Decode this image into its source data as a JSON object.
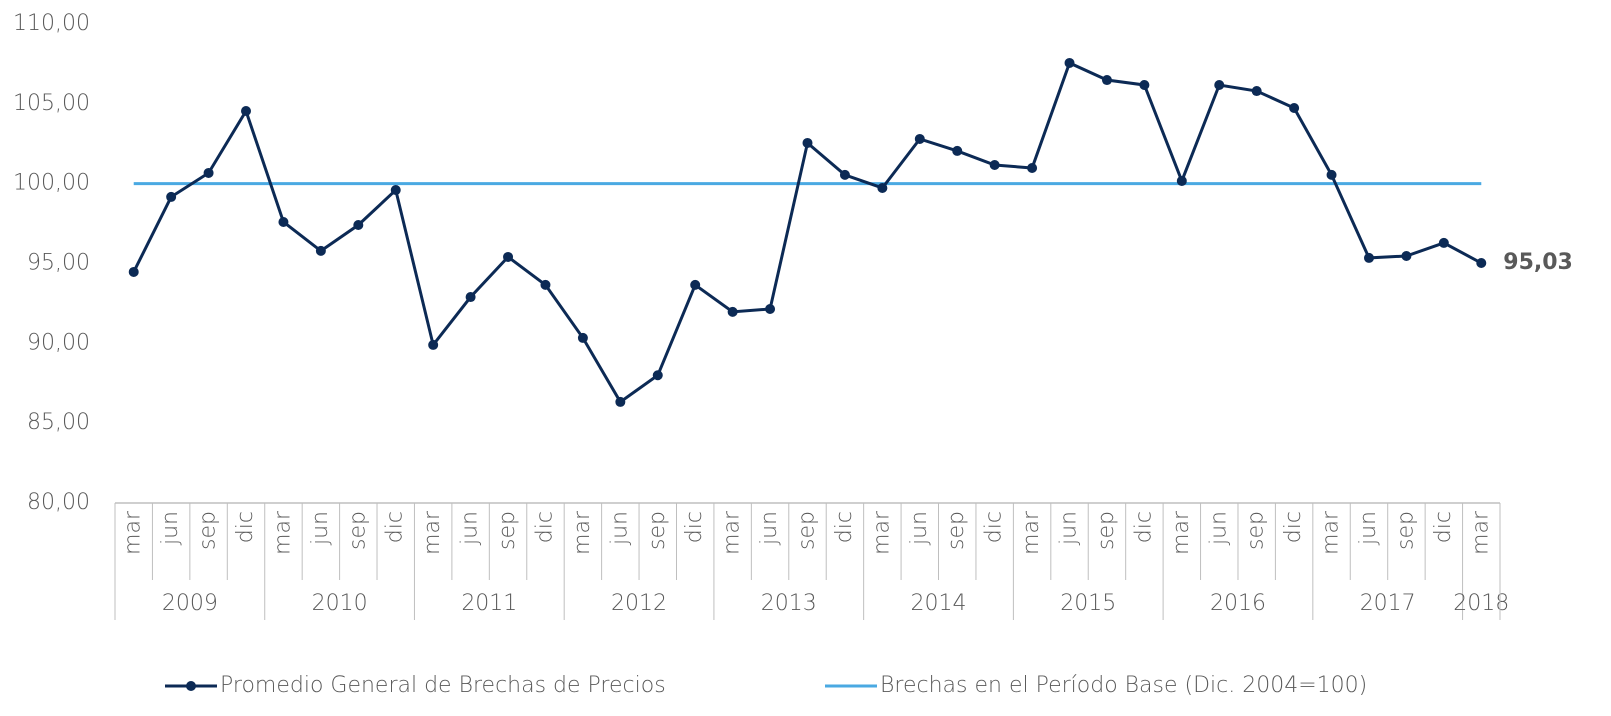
{
  "chart_data": {
    "type": "line",
    "category_groups": [
      {
        "name": "2009",
        "categories": [
          "mar",
          "jun",
          "sep",
          "dic"
        ]
      },
      {
        "name": "2010",
        "categories": [
          "mar",
          "jun",
          "sep",
          "dic"
        ]
      },
      {
        "name": "2011",
        "categories": [
          "mar",
          "jun",
          "sep",
          "dic"
        ]
      },
      {
        "name": "2012",
        "categories": [
          "mar",
          "jun",
          "sep",
          "dic"
        ]
      },
      {
        "name": "2013",
        "categories": [
          "mar",
          "jun",
          "sep",
          "dic"
        ]
      },
      {
        "name": "2014",
        "categories": [
          "mar",
          "jun",
          "sep",
          "dic"
        ]
      },
      {
        "name": "2015",
        "categories": [
          "mar",
          "jun",
          "sep",
          "dic"
        ]
      },
      {
        "name": "2016",
        "categories": [
          "mar",
          "jun",
          "sep",
          "dic"
        ]
      },
      {
        "name": "2017",
        "categories": [
          "mar",
          "jun",
          "sep",
          "dic"
        ]
      },
      {
        "name": "2018",
        "categories": [
          "mar"
        ]
      }
    ],
    "series": [
      {
        "name": "Promedio General de Brechas de Precios",
        "color": "#0c2a55",
        "markers": true,
        "values": [
          94.47,
          99.17,
          100.67,
          104.55,
          97.6,
          95.79,
          97.41,
          99.6,
          89.9,
          92.9,
          95.41,
          93.66,
          90.34,
          86.33,
          88.0,
          93.66,
          91.97,
          92.15,
          102.55,
          100.55,
          99.73,
          102.8,
          102.05,
          101.17,
          100.98,
          107.56,
          106.49,
          106.18,
          100.17,
          106.18,
          105.8,
          104.74,
          100.55,
          95.35,
          95.47,
          96.29,
          95.03
        ],
        "value_labels": [
          null,
          null,
          null,
          null,
          null,
          null,
          null,
          null,
          null,
          null,
          null,
          null,
          null,
          null,
          null,
          null,
          null,
          null,
          null,
          null,
          null,
          null,
          null,
          null,
          null,
          null,
          null,
          null,
          null,
          null,
          null,
          null,
          null,
          null,
          null,
          null,
          "95,03"
        ]
      },
      {
        "name": "Brechas en el Período Base (Dic. 2004=100)",
        "color": "#4aa9e2",
        "markers": false,
        "values": [
          100,
          100,
          100,
          100,
          100,
          100,
          100,
          100,
          100,
          100,
          100,
          100,
          100,
          100,
          100,
          100,
          100,
          100,
          100,
          100,
          100,
          100,
          100,
          100,
          100,
          100,
          100,
          100,
          100,
          100,
          100,
          100,
          100,
          100,
          100,
          100,
          100
        ]
      }
    ],
    "ylim": [
      80,
      110
    ],
    "yticks": [
      {
        "value": 80,
        "label": "80,00"
      },
      {
        "value": 85,
        "label": "85,00"
      },
      {
        "value": 90,
        "label": "90,00"
      },
      {
        "value": 95,
        "label": "95,00"
      },
      {
        "value": 100,
        "label": "100,00"
      },
      {
        "value": 105,
        "label": "105,00"
      },
      {
        "value": 110,
        "label": "110,00"
      }
    ],
    "grid": false,
    "legend": "bottom"
  }
}
